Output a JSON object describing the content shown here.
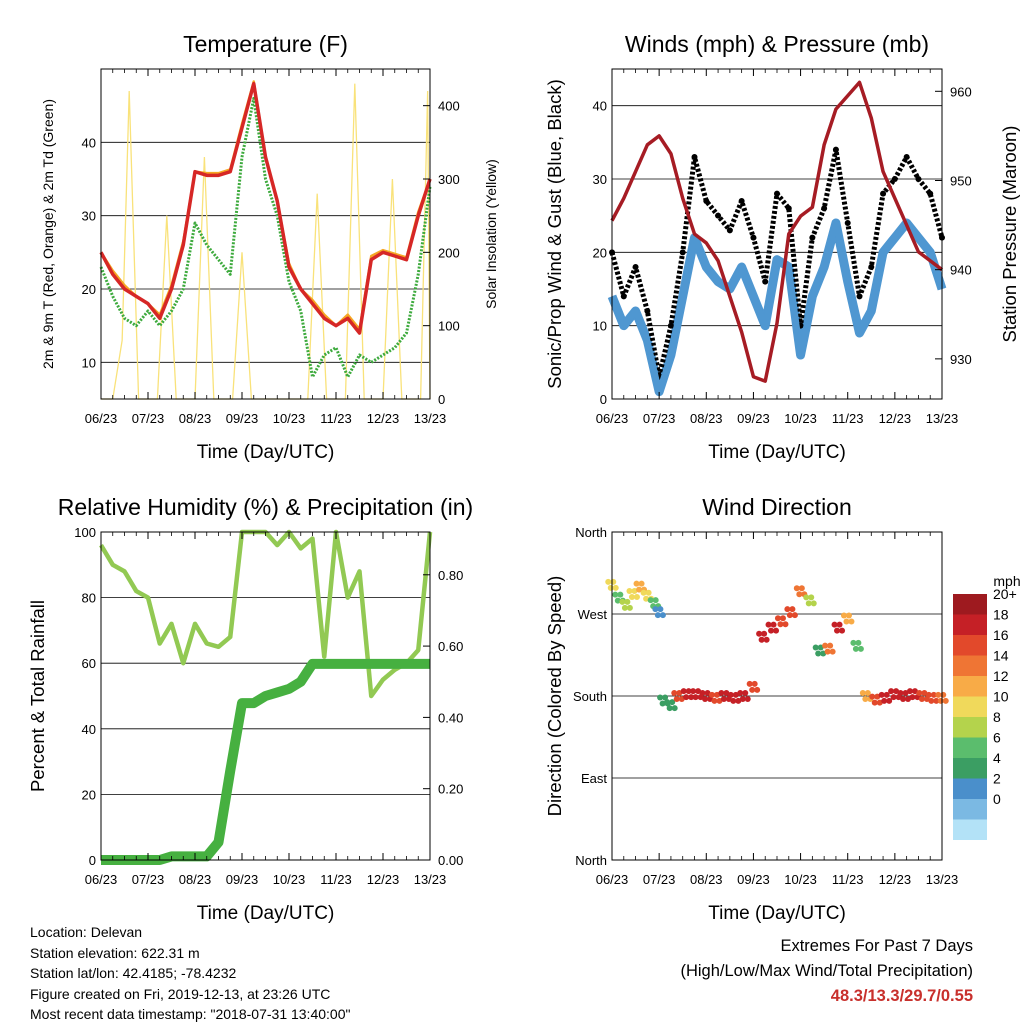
{
  "colors": {
    "temp_2m": "#d62726",
    "temp_9m": "#f5a623",
    "dewpoint": "#3daa3d",
    "solar": "#f9e27a",
    "wind": "#4f97d1",
    "gust": "#000000",
    "pressure": "#a61c24",
    "rh": "#92c953",
    "precip": "#46b040",
    "speed_scale": [
      "#b3e2f7",
      "#7bb9e3",
      "#4a8fcb",
      "#3b9e63",
      "#5bbd6d",
      "#b4d34c",
      "#f0d95b",
      "#f8ab47",
      "#ef7534",
      "#e2492b",
      "#c52026",
      "#9e1a1f"
    ]
  },
  "x_ticks": [
    "06/23",
    "07/23",
    "08/23",
    "09/23",
    "10/23",
    "11/23",
    "12/23",
    "13/23"
  ],
  "footer": {
    "location": "Location: Delevan",
    "elevation": "Station elevation: 622.31 m",
    "latlon": "Station lat/lon: 42.4185; -78.4232",
    "created": "Figure created on Fri, 2019-12-13, at 23:26 UTC",
    "recent": "Most recent data timestamp: \"2018-07-31 13:40:00\"",
    "extremes_title": "Extremes For Past 7 Days",
    "extremes_sub": "(High/Low/Max Wind/Total Precipitation)",
    "extremes_values": "48.3/13.3/29.7/0.55"
  },
  "chart_data": [
    {
      "id": "temperature",
      "type": "line",
      "title": "Temperature (F)",
      "xlabel": "Time (Day/UTC)",
      "ylabel": "2m & 9m T (Red, Orange) & 2m Td (Green)",
      "y2label": "Solar Insolation (Yellow)",
      "xlim": [
        6,
        13
      ],
      "ylim": [
        5,
        50
      ],
      "y2lim": [
        0,
        450
      ],
      "yticks": [
        10,
        20,
        30,
        40
      ],
      "y2ticks": [
        0,
        100,
        200,
        300,
        400
      ],
      "x": [
        6.0,
        6.25,
        6.5,
        6.75,
        7.0,
        7.25,
        7.5,
        7.75,
        8.0,
        8.25,
        8.5,
        8.75,
        9.0,
        9.25,
        9.5,
        9.75,
        10.0,
        10.25,
        10.5,
        10.75,
        11.0,
        11.25,
        11.5,
        11.75,
        12.0,
        12.25,
        12.5,
        12.75,
        13.0
      ],
      "series": [
        {
          "name": "2m T",
          "role": "temp_2m",
          "values": [
            25,
            22,
            20,
            19,
            18,
            16,
            20,
            26,
            36,
            35.5,
            35.5,
            36,
            42,
            48,
            38,
            32,
            23,
            20,
            18,
            16,
            15,
            16,
            14,
            24,
            25,
            24.5,
            24,
            30,
            35
          ]
        },
        {
          "name": "9m T",
          "role": "temp_9m",
          "values": [
            25,
            22.5,
            20.5,
            19,
            18,
            16.5,
            20.5,
            26.5,
            36,
            35.8,
            35.8,
            36.3,
            42.5,
            48.3,
            38,
            32,
            23.5,
            20,
            18.5,
            16.5,
            15,
            16.5,
            14.5,
            24.5,
            25.3,
            24.8,
            24.3,
            30.5,
            35
          ]
        },
        {
          "name": "2m Td",
          "role": "dewpoint",
          "values": [
            23,
            19,
            16,
            15,
            17,
            15,
            17,
            20,
            29,
            26,
            24,
            22,
            38,
            46,
            35,
            30,
            21,
            17,
            8,
            11,
            12,
            8,
            11,
            10,
            11,
            12,
            14,
            22,
            34
          ]
        },
        {
          "name": "Solar",
          "role": "solar",
          "axis": "y2",
          "x": [
            6.0,
            6.25,
            6.45,
            6.6,
            6.8,
            7.0,
            7.2,
            7.4,
            7.6,
            7.8,
            8.0,
            8.2,
            8.4,
            8.6,
            8.8,
            9.0,
            9.2,
            9.4,
            9.6,
            9.8,
            10.0,
            10.2,
            10.4,
            10.6,
            10.8,
            11.0,
            11.2,
            11.4,
            11.6,
            11.8,
            12.0,
            12.2,
            12.4,
            12.6,
            12.8,
            12.95,
            13.0
          ],
          "values": [
            0,
            0,
            80,
            420,
            0,
            0,
            0,
            250,
            0,
            0,
            0,
            330,
            0,
            0,
            0,
            200,
            0,
            0,
            0,
            0,
            0,
            0,
            0,
            280,
            0,
            0,
            0,
            430,
            0,
            0,
            0,
            300,
            0,
            0,
            0,
            420,
            0
          ]
        }
      ]
    },
    {
      "id": "winds",
      "type": "line",
      "title": "Winds (mph) & Pressure (mb)",
      "xlabel": "Time (Day/UTC)",
      "ylabel": "Sonic/Prop Wind & Gust (Blue, Black)",
      "y2label": "Station Pressure (Maroon)",
      "xlim": [
        6,
        13
      ],
      "ylim": [
        0,
        45
      ],
      "y2lim": [
        925.5,
        962.5
      ],
      "yticks": [
        0,
        10,
        20,
        30,
        40
      ],
      "y2ticks": [
        930,
        940,
        950,
        960
      ],
      "x": [
        6.0,
        6.25,
        6.5,
        6.75,
        7.0,
        7.25,
        7.5,
        7.75,
        8.0,
        8.25,
        8.5,
        8.75,
        9.0,
        9.25,
        9.5,
        9.75,
        10.0,
        10.25,
        10.5,
        10.75,
        11.0,
        11.25,
        11.5,
        11.75,
        12.0,
        12.25,
        12.5,
        12.75,
        13.0
      ],
      "series": [
        {
          "name": "Wind",
          "role": "wind",
          "values": [
            14,
            10,
            12,
            8,
            1,
            6,
            14,
            22,
            18,
            16,
            15,
            18,
            14,
            10,
            19,
            18,
            6,
            14,
            18,
            24,
            16,
            9,
            12,
            20,
            22,
            24,
            22,
            20,
            15
          ]
        },
        {
          "name": "Gust",
          "role": "gust",
          "values": [
            20,
            14,
            18,
            12,
            3,
            10,
            20,
            33,
            27,
            25,
            23,
            27,
            22,
            16,
            28,
            26,
            10,
            22,
            26,
            34,
            24,
            14,
            18,
            28,
            30,
            33,
            30,
            28,
            22
          ]
        },
        {
          "name": "Pressure",
          "role": "pressure",
          "axis": "y2",
          "values": [
            945.5,
            948,
            951,
            954,
            955,
            953,
            948,
            944,
            943,
            941,
            937,
            933,
            928,
            927.5,
            934,
            944,
            946,
            947,
            954,
            958,
            959.5,
            961,
            957,
            951,
            948,
            945,
            942,
            941,
            940
          ]
        }
      ]
    },
    {
      "id": "rh_precip",
      "type": "line",
      "title": "Relative Humidity (%) & Precipitation (in)",
      "xlabel": "Time (Day/UTC)",
      "ylabel": "Percent & Total Rainfall",
      "xlim": [
        6,
        13
      ],
      "ylim": [
        0,
        100
      ],
      "y2lim": [
        0,
        0.92
      ],
      "yticks": [
        0,
        20,
        40,
        60,
        80,
        100
      ],
      "y2ticks": [
        "0.00",
        "0.20",
        "0.40",
        "0.60",
        "0.80"
      ],
      "x": [
        6.0,
        6.25,
        6.5,
        6.75,
        7.0,
        7.25,
        7.5,
        7.75,
        8.0,
        8.25,
        8.5,
        8.75,
        9.0,
        9.25,
        9.5,
        9.75,
        10.0,
        10.25,
        10.5,
        10.75,
        11.0,
        11.25,
        11.5,
        11.75,
        12.0,
        12.25,
        12.5,
        12.75,
        13.0
      ],
      "series": [
        {
          "name": "RH",
          "role": "rh",
          "values": [
            96,
            90,
            88,
            82,
            80,
            66,
            72,
            60,
            72,
            66,
            65,
            68,
            100,
            100,
            100,
            96,
            100,
            95,
            98,
            62,
            100,
            80,
            88,
            50,
            55,
            58,
            60,
            64,
            100
          ]
        },
        {
          "name": "Precip",
          "role": "precip",
          "axis": "y2",
          "values": [
            0,
            0,
            0,
            0,
            0,
            0,
            0.01,
            0.01,
            0.01,
            0.01,
            0.05,
            0.25,
            0.44,
            0.44,
            0.46,
            0.47,
            0.48,
            0.5,
            0.55,
            0.55,
            0.55,
            0.55,
            0.55,
            0.55,
            0.55,
            0.55,
            0.55,
            0.55,
            0.55
          ]
        }
      ]
    },
    {
      "id": "wind_direction",
      "type": "scatter",
      "title": "Wind Direction",
      "xlabel": "Time (Day/UTC)",
      "ylabel": "Direction (Colored By Speed)",
      "xlim": [
        6,
        13
      ],
      "ylim": [
        0,
        360
      ],
      "yticks": [
        "North",
        "East",
        "South",
        "West",
        "North"
      ],
      "legend": {
        "title": "mph",
        "labels": [
          "20+",
          "18",
          "16",
          "14",
          "12",
          "10",
          "8",
          "6",
          "4",
          "2",
          "0"
        ],
        "position": "right"
      },
      "x": [
        6.0,
        6.15,
        6.3,
        6.45,
        6.6,
        6.75,
        6.9,
        7.0,
        7.1,
        7.25,
        7.4,
        7.6,
        7.8,
        8.0,
        8.2,
        8.4,
        8.6,
        8.8,
        9.0,
        9.2,
        9.4,
        9.6,
        9.8,
        10.0,
        10.2,
        10.4,
        10.6,
        10.8,
        11.0,
        11.2,
        11.4,
        11.6,
        11.8,
        12.0,
        12.2,
        12.4,
        12.6,
        12.8,
        13.0
      ],
      "values": [
        302,
        288,
        280,
        292,
        300,
        290,
        282,
        272,
        175,
        170,
        180,
        182,
        182,
        180,
        178,
        180,
        178,
        180,
        190,
        245,
        255,
        262,
        272,
        295,
        285,
        230,
        232,
        255,
        265,
        235,
        180,
        176,
        178,
        182,
        180,
        182,
        180,
        178,
        178
      ],
      "speed": [
        10,
        8,
        9,
        11,
        12,
        10,
        7,
        4,
        6,
        5,
        16,
        18,
        19,
        18,
        17,
        18,
        19,
        18,
        17,
        18,
        19,
        17,
        16,
        14,
        9,
        6,
        14,
        18,
        12,
        8,
        12,
        16,
        18,
        19,
        18,
        18,
        17,
        16,
        15
      ]
    }
  ]
}
